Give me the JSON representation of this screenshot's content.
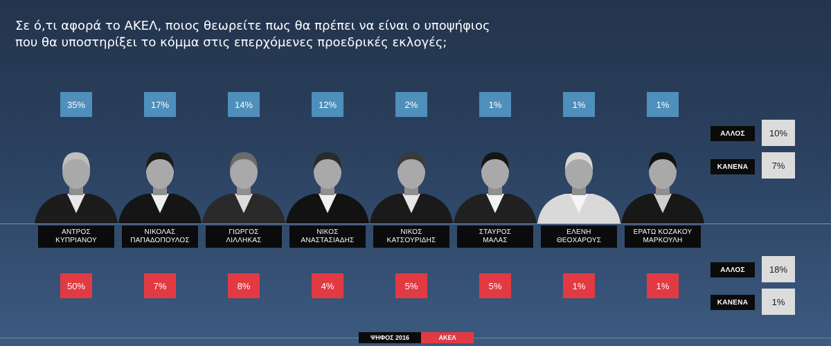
{
  "title_line1": "Σε ό,τι αφορά το ΑΚΕΛ, ποιος θεωρείτε πως θα πρέπει να είναι ο υποψήφιος",
  "title_line2": "που θα υποστηρίξει το κόμμα στις επερχόμενες προεδρικές εκλογές;",
  "colors": {
    "top": "#4f8fbb",
    "bottom": "#e23a43",
    "name_bg": "#0b0b0b",
    "side_value_bg": "#dcdcdc"
  },
  "chart_data": {
    "type": "bar",
    "categories": [
      "ΑΝΤΡΟΣ ΚΥΠΡΙΑΝΟΥ",
      "ΝΙΚΟΛΑΣ ΠΑΠΑΔΟΠΟΥΛΟΣ",
      "ΓΙΩΡΓΟΣ ΛΙΛΛΗΚΑΣ",
      "ΝΙΚΟΣ ΑΝΑΣΤΑΣΙΑΔΗΣ",
      "ΝΙΚΟΣ ΚΑΤΣΟΥΡΙΔΗΣ",
      "ΣΤΑΥΡΟΣ ΜΑΛΑΣ",
      "ΕΛΕΝΗ ΘΕΟΧΑΡΟΥΣ",
      "ΕΡΑΤΩ ΚΟΖΑΚΟΥ ΜΑΡΚΟΥΛΗ"
    ],
    "name_lines": [
      [
        "ΑΝΤΡΟΣ",
        "ΚΥΠΡΙΑΝΟΥ"
      ],
      [
        "ΝΙΚΟΛΑΣ",
        "ΠΑΠΑΔΟΠΟΥΛΟΣ"
      ],
      [
        "ΓΙΩΡΓΟΣ",
        "ΛΙΛΛΗΚΑΣ"
      ],
      [
        "ΝΙΚΟΣ",
        "ΑΝΑΣΤΑΣΙΑΔΗΣ"
      ],
      [
        "ΝΙΚΟΣ",
        "ΚΑΤΣΟΥΡΙΔΗΣ"
      ],
      [
        "ΣΤΑΥΡΟΣ",
        "ΜΑΛΑΣ"
      ],
      [
        "ΕΛΕΝΗ",
        "ΘΕΟΧΑΡΟΥΣ"
      ],
      [
        "ΕΡΑΤΩ ΚΟΖΑΚΟΥ",
        "ΜΑΡΚΟΥΛΗ"
      ]
    ],
    "series": [
      {
        "name": "ΨΗΦΟΣ 2016",
        "values": [
          35,
          17,
          14,
          12,
          2,
          1,
          1,
          1
        ],
        "labels": [
          "35%",
          "17%",
          "14%",
          "12%",
          "2%",
          "1%",
          "1%",
          "1%"
        ],
        "other": "10%",
        "none": "7%"
      },
      {
        "name": "ΑΚΕΛ",
        "values": [
          50,
          7,
          8,
          4,
          5,
          5,
          1,
          1
        ],
        "labels": [
          "50%",
          "7%",
          "8%",
          "4%",
          "5%",
          "5%",
          "1%",
          "1%"
        ],
        "other": "18%",
        "none": "1%"
      }
    ],
    "side_labels": {
      "other": "ΑΛΛΟΣ",
      "none": "ΚΑΝΕΝΑ"
    },
    "legend": [
      "ΨΗΦΟΣ 2016",
      "ΑΚΕΛ"
    ],
    "legend_placement": "bottom-center"
  }
}
